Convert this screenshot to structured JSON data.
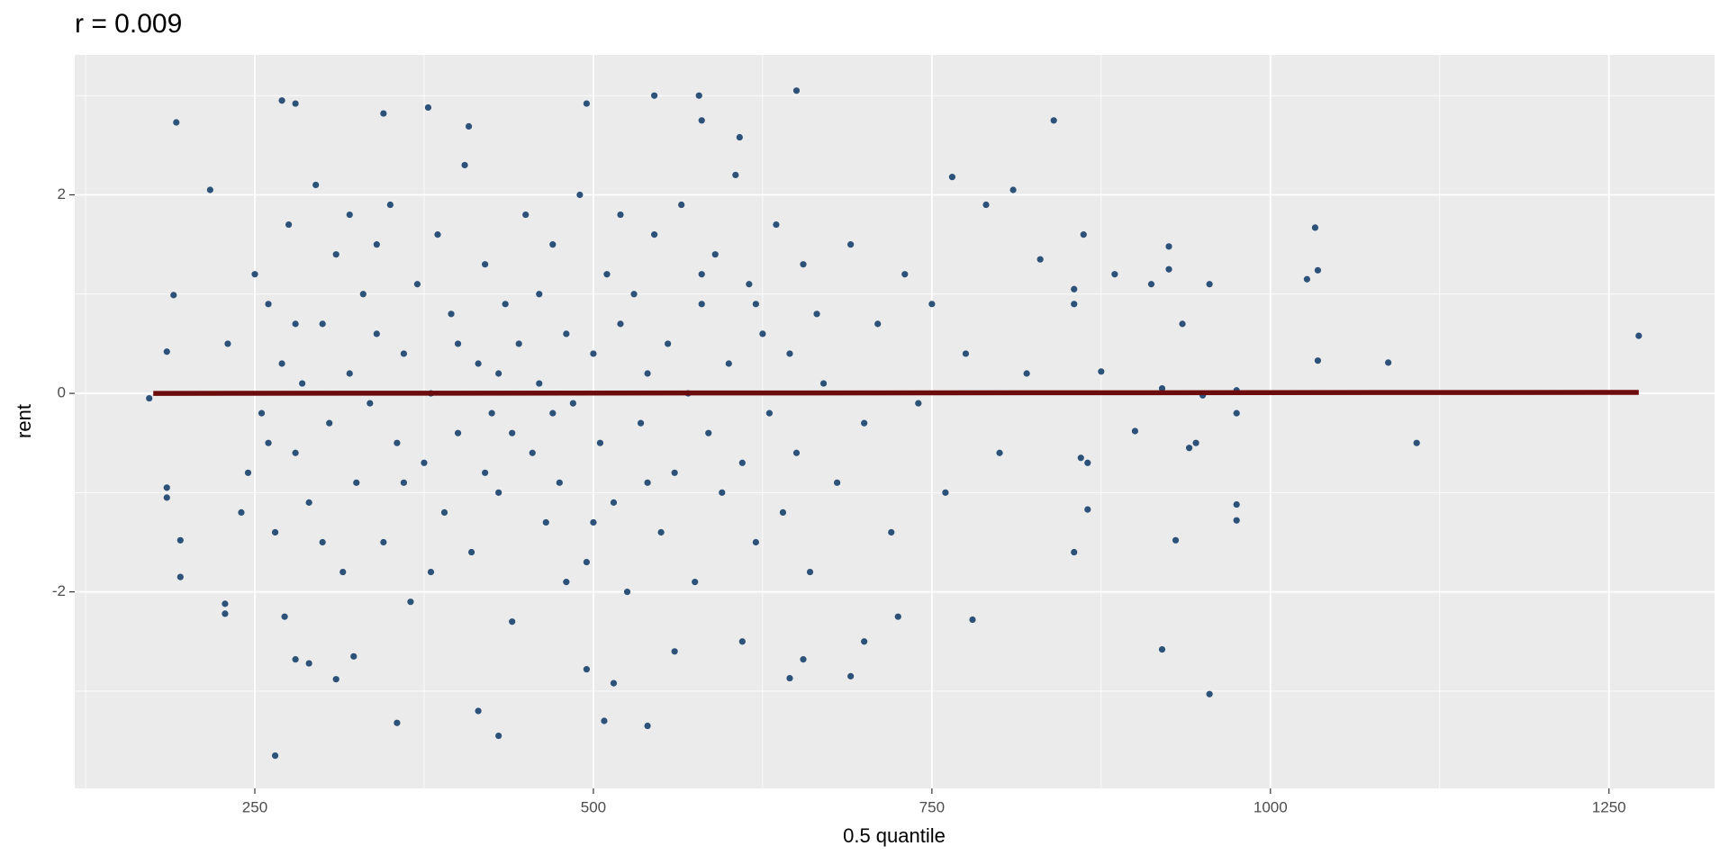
{
  "chart_data": {
    "type": "scatter",
    "title": "r = 0.009",
    "xlabel": "0.5 quantile",
    "ylabel": "rent",
    "xlim": [
      117,
      1328
    ],
    "ylim": [
      -3.98,
      3.41
    ],
    "xticks": [
      250,
      500,
      750,
      1000,
      1250
    ],
    "yticks": [
      -2,
      0,
      2
    ],
    "x_minor_grid": [
      125,
      375,
      625,
      875,
      1125
    ],
    "y_minor_grid": [
      -3,
      -1,
      1,
      3
    ],
    "grid": true,
    "series": [
      {
        "type": "scatter",
        "color": "#2d5279",
        "x": [
          172,
          192,
          265,
          430,
          355,
          540,
          508,
          955,
          920,
          1272,
          1108,
          1087,
          1033,
          1035,
          1035,
          1027,
          650,
          545,
          578,
          840,
          975,
          975,
          975,
          975,
          955,
          930,
          935,
          925,
          925,
          912,
          900,
          945,
          940,
          950,
          920,
          875,
          885,
          862,
          855,
          855,
          860,
          865,
          865,
          855,
          830,
          810,
          780,
          765,
          690,
          700,
          655,
          645,
          610,
          560,
          515,
          495,
          415,
          310,
          290,
          280,
          323,
          272,
          228,
          228,
          195,
          185,
          185,
          195,
          270,
          280,
          345,
          378,
          408,
          495,
          580,
          608,
          725,
          217,
          185,
          190,
          230,
          245,
          250,
          255,
          260,
          265,
          270,
          275,
          280,
          285,
          290,
          295,
          300,
          305,
          310,
          315,
          320,
          325,
          330,
          335,
          340,
          345,
          350,
          355,
          360,
          365,
          370,
          375,
          380,
          385,
          390,
          395,
          400,
          405,
          410,
          415,
          420,
          425,
          430,
          435,
          440,
          445,
          450,
          455,
          460,
          465,
          470,
          475,
          480,
          485,
          490,
          495,
          500,
          505,
          510,
          515,
          520,
          525,
          530,
          535,
          540,
          545,
          550,
          555,
          560,
          565,
          570,
          575,
          580,
          585,
          590,
          595,
          600,
          605,
          610,
          615,
          620,
          625,
          630,
          635,
          640,
          645,
          650,
          655,
          660,
          665,
          670,
          680,
          690,
          700,
          710,
          720,
          730,
          740,
          750,
          760,
          775,
          790,
          800,
          820,
          260,
          300,
          340,
          380,
          420,
          460,
          500,
          540,
          580,
          620,
          400,
          440,
          480,
          360,
          320,
          280,
          240,
          520,
          470,
          430
        ],
        "values": [
          -0.05,
          2.73,
          -3.65,
          -3.45,
          -3.32,
          -3.35,
          -3.3,
          -3.03,
          -2.58,
          0.58,
          -0.5,
          0.31,
          1.67,
          1.24,
          0.33,
          1.15,
          3.05,
          3.0,
          3.0,
          2.75,
          0.03,
          -0.2,
          -1.12,
          -1.28,
          1.1,
          -1.48,
          0.7,
          1.48,
          1.25,
          1.1,
          -0.38,
          -0.5,
          -0.55,
          -0.02,
          0.05,
          0.22,
          1.2,
          1.6,
          0.9,
          1.05,
          -0.65,
          -0.7,
          -1.17,
          -1.6,
          1.35,
          2.05,
          -2.28,
          2.18,
          -2.85,
          -2.5,
          -2.68,
          -2.87,
          -2.5,
          -2.6,
          -2.92,
          -2.78,
          -3.2,
          -2.88,
          -2.72,
          -2.68,
          -2.65,
          -2.25,
          -2.22,
          -2.12,
          -1.85,
          -1.05,
          -0.95,
          -1.48,
          2.95,
          2.92,
          2.82,
          2.88,
          2.69,
          2.92,
          2.75,
          2.58,
          -2.25,
          2.05,
          0.42,
          0.99,
          0.5,
          -0.8,
          1.2,
          -0.2,
          0.9,
          -1.4,
          0.3,
          1.7,
          -0.6,
          0.1,
          -1.1,
          2.1,
          0.7,
          -0.3,
          1.4,
          -1.8,
          0.2,
          -0.9,
          1.0,
          -0.1,
          0.6,
          -1.5,
          1.9,
          -0.5,
          0.4,
          -2.1,
          1.1,
          -0.7,
          0.0,
          1.6,
          -1.2,
          0.8,
          -0.4,
          2.3,
          -1.6,
          0.3,
          1.3,
          -0.2,
          -1.0,
          0.9,
          -2.3,
          0.5,
          1.8,
          -0.6,
          0.1,
          -1.3,
          1.5,
          -0.9,
          0.6,
          -0.1,
          2.0,
          -1.7,
          0.4,
          -0.5,
          1.2,
          -1.1,
          0.7,
          -2.0,
          1.0,
          -0.3,
          0.2,
          1.6,
          -1.4,
          0.5,
          -0.8,
          1.9,
          0.0,
          -1.9,
          0.9,
          -0.4,
          1.4,
          -1.0,
          0.3,
          2.2,
          -0.7,
          1.1,
          -1.5,
          0.6,
          -0.2,
          1.7,
          -1.2,
          0.4,
          -0.6,
          1.3,
          -1.8,
          0.8,
          0.1,
          -0.9,
          1.5,
          -0.3,
          0.7,
          -1.4,
          1.2,
          -0.1,
          0.9,
          -1.0,
          0.4,
          1.9,
          -0.6,
          0.2,
          -0.5,
          -1.5,
          1.5,
          -1.8,
          -0.8,
          1.0,
          -1.3,
          -0.9,
          1.2,
          0.9,
          0.5,
          -0.4,
          -1.9,
          -0.9,
          1.8,
          0.7,
          -1.2,
          1.8,
          -0.2,
          0.2
        ]
      },
      {
        "type": "line",
        "color": "#6b0b0b",
        "x": [
          175,
          1272
        ],
        "values": [
          0.0,
          0.01
        ]
      }
    ]
  }
}
